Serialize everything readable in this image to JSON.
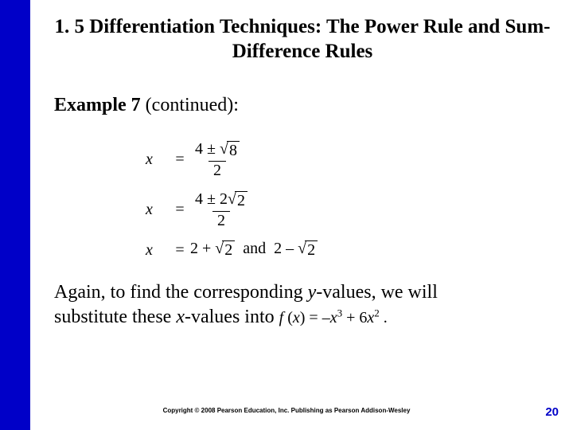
{
  "colors": {
    "sidebar": "#0000c8",
    "pagenum": "#0000c8",
    "background": "#ffffff",
    "text": "#000000"
  },
  "title": "1. 5 Differentiation Techniques:  The Power Rule and Sum-Difference Rules",
  "example_label_bold": "Example 7 ",
  "example_label_rest": "(continued):",
  "eq1": {
    "x": "x",
    "eq": "=",
    "num_pre": "4 ± ",
    "num_rad": "8",
    "den": "2"
  },
  "eq2": {
    "x": "x",
    "eq": "=",
    "num_pre": "4 ± 2",
    "num_rad": "2",
    "den": "2"
  },
  "eq3": {
    "x": "x",
    "eq": "=",
    "lhs_pre": "2 + ",
    "lhs_rad": "2",
    "and": "and",
    "rhs_pre": "2 – ",
    "rhs_rad": "2"
  },
  "body_line1": "Again, to find the corresponding ",
  "body_y": "y",
  "body_line1b": "-values, we will",
  "body_line2a": "substitute these ",
  "body_x": "x",
  "body_line2b": "-values into  ",
  "fx": {
    "f": "f",
    "open": " (",
    "xvar": "x",
    "close": ") = –",
    "xt1": "x",
    "p1": "3",
    "plus": " + 6",
    "xt2": "x",
    "p2": "2",
    "dot": " ."
  },
  "copyright": "Copyright © 2008 Pearson Education, Inc.  Publishing as Pearson Addison-Wesley",
  "page_number": "20"
}
